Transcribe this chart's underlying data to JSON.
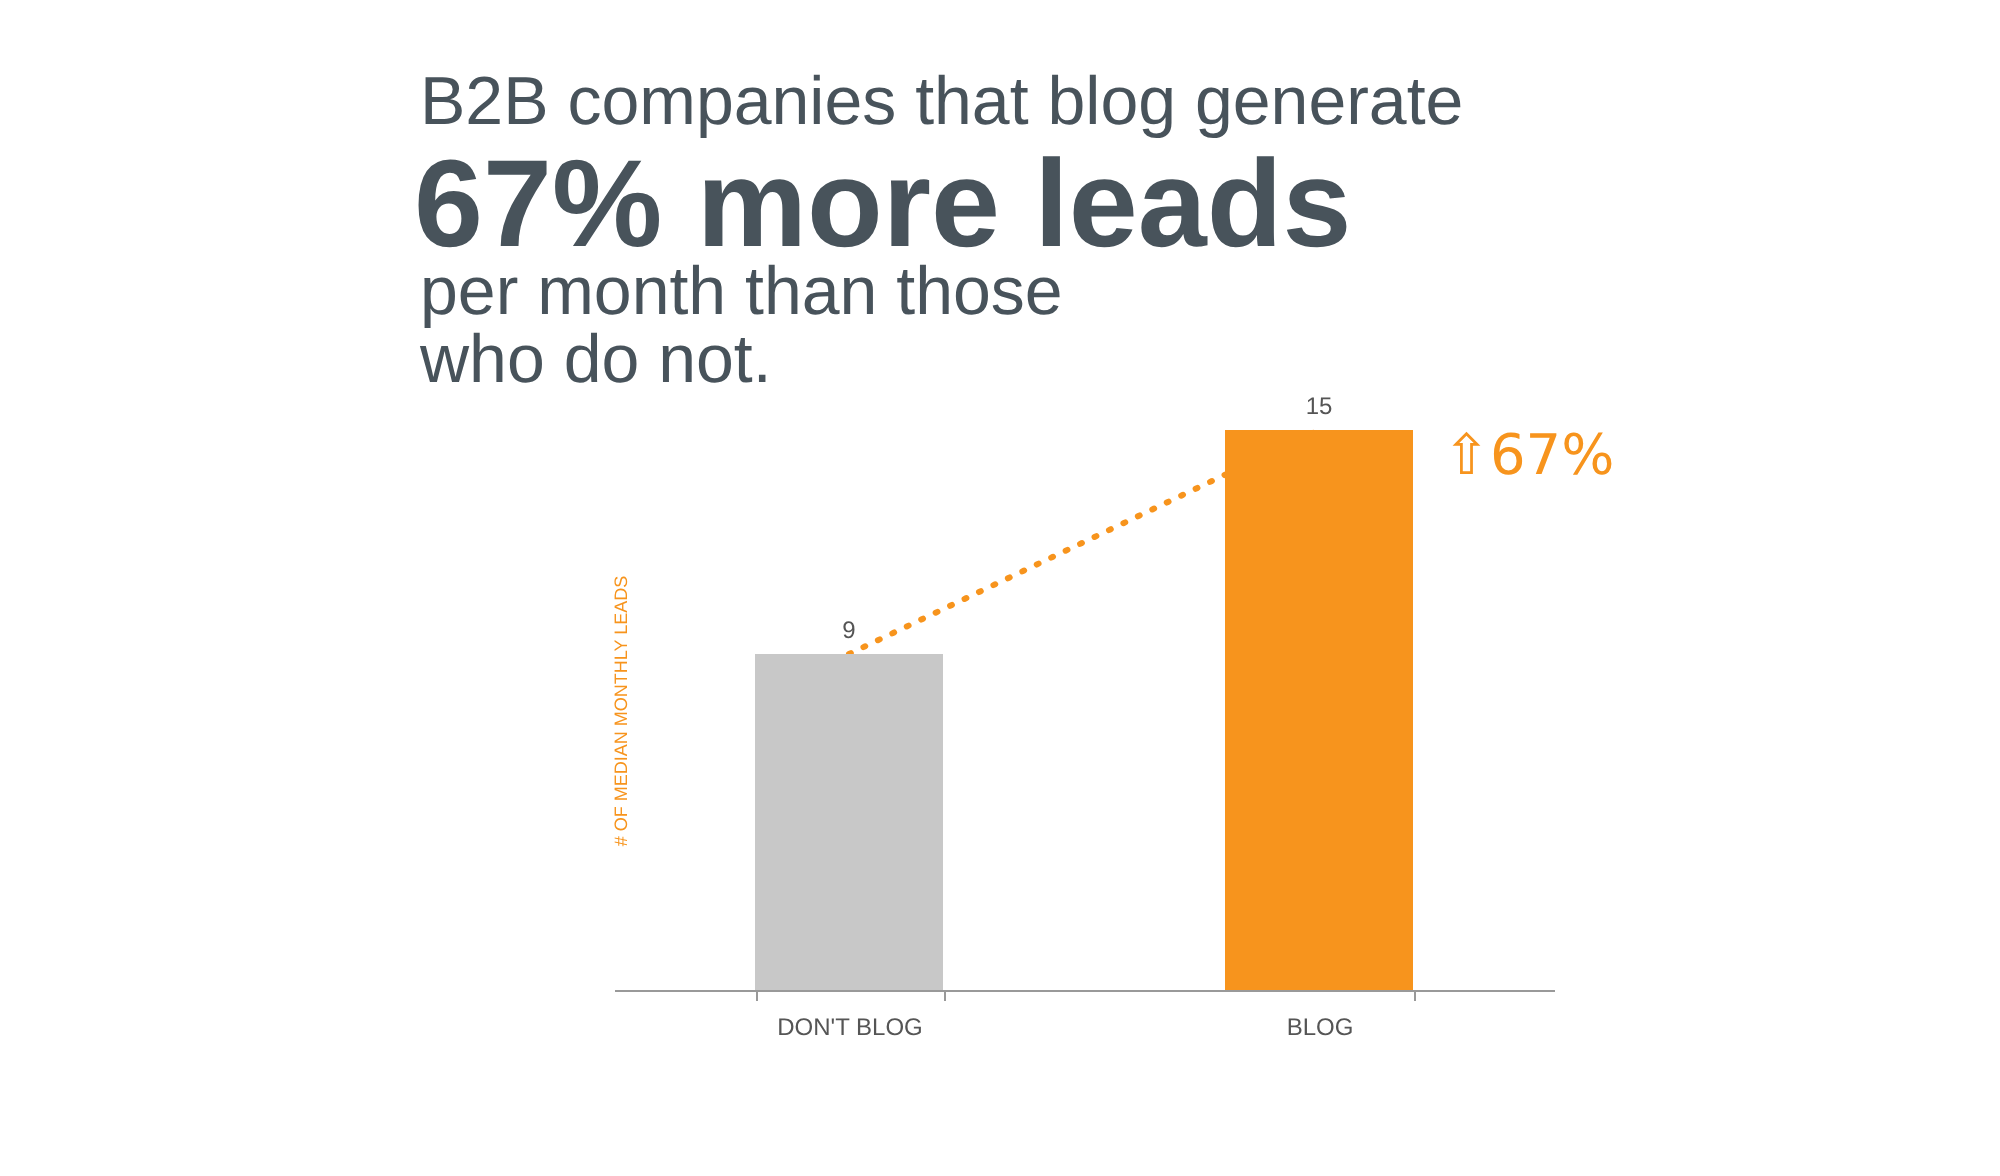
{
  "chart_data": {
    "type": "bar",
    "title": "B2B companies that blog generate",
    "subtitle": "67% more leads",
    "ylabel": "# OF MEDIAN MONTHLY LEADS",
    "categories": [
      "DON'T BLOG",
      "BLOG"
    ],
    "series": [
      {
        "type": "bar",
        "colors": [
          "#c8c8c8",
          "#f7941d"
        ],
        "values": [
          9,
          15
        ],
        "value_labels": [
          "9",
          "15"
        ]
      },
      {
        "type": "line",
        "color": "#f7941d",
        "line_style": "dotted",
        "values": [
          9,
          15
        ]
      }
    ],
    "ylim": [
      0,
      15
    ],
    "tick_labels": "x",
    "annotations": [
      "per month than those\nwho do not.",
      {
        "text": "⇧67%",
        "x": "BLOG",
        "y": 15
      }
    ]
  }
}
